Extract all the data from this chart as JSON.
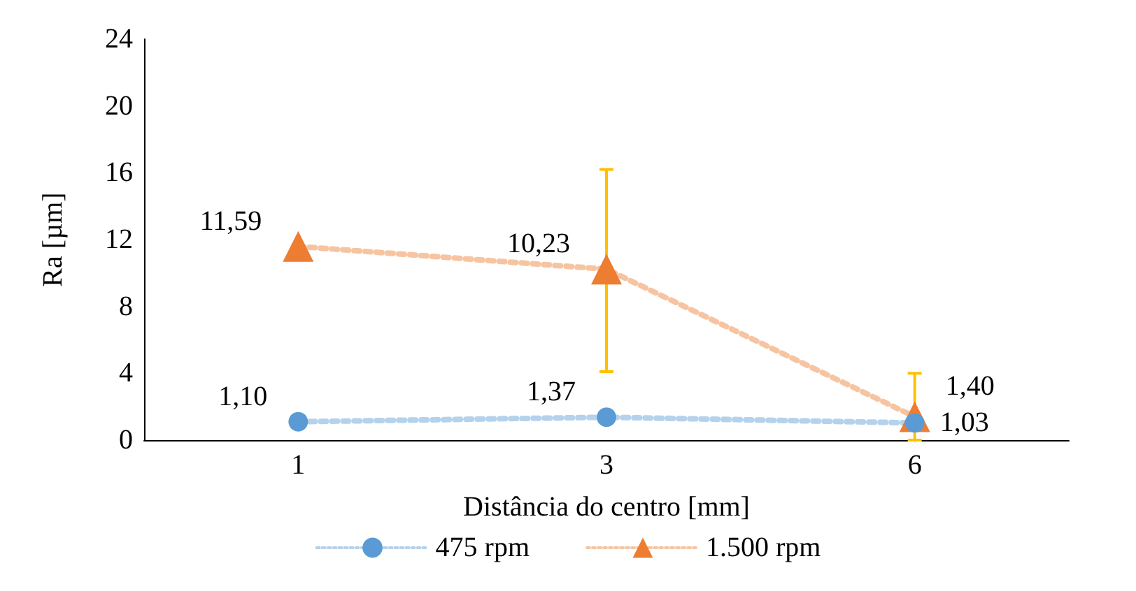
{
  "chart_data": {
    "type": "line",
    "xlabel": "Distância do centro [mm]",
    "ylabel": "Ra [µm]",
    "categories": [
      "1",
      "3",
      "6"
    ],
    "ylim": [
      0,
      24
    ],
    "yticks": [
      0,
      4,
      8,
      12,
      16,
      20,
      24
    ],
    "grid": false,
    "legend": "bottom",
    "line_style": "dotted",
    "series": [
      {
        "name": "475 rpm",
        "color": "#5b9bd5",
        "marker": "circle",
        "values": [
          1.1,
          1.37,
          1.03
        ],
        "value_labels": [
          "1,10",
          "1,37",
          "1,03"
        ]
      },
      {
        "name": "1.500 rpm",
        "color": "#ed7d31",
        "marker": "triangle",
        "values": [
          11.59,
          10.23,
          1.4
        ],
        "value_labels": [
          "11,59",
          "10,23",
          "1,40"
        ],
        "errors": [
          null,
          [
            4.1,
            16.2
          ],
          [
            0,
            4.0
          ]
        ]
      }
    ]
  }
}
